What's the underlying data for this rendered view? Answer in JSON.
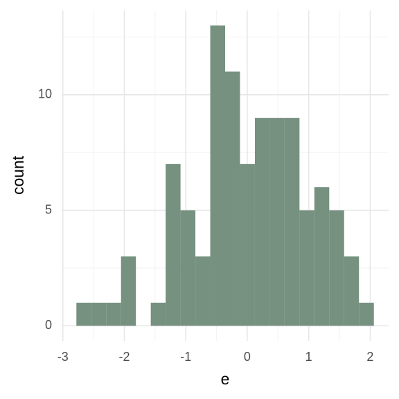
{
  "chart_data": {
    "type": "histogram",
    "x_label": "e",
    "y_label": "count",
    "color": "#76917f",
    "bins": [
      -2.78,
      -2.538,
      -2.296,
      -2.054,
      -1.812,
      -1.57,
      -1.328,
      -1.086,
      -0.844,
      -0.602,
      -0.36,
      -0.118,
      0.124,
      0.366,
      0.608,
      0.85,
      1.092,
      1.334,
      1.576,
      1.818,
      2.06
    ],
    "values": [
      1,
      1,
      1,
      3,
      0,
      1,
      7,
      5,
      3,
      13,
      11,
      7,
      9,
      9,
      9,
      5,
      6,
      5,
      3,
      1
    ],
    "xlim": [
      -3.02,
      2.3
    ],
    "ylim": [
      -0.65,
      13.65
    ],
    "xticks": [
      -3,
      -2,
      -1,
      0,
      1,
      2
    ],
    "yticks": [
      0,
      5,
      10
    ],
    "grid": true
  }
}
